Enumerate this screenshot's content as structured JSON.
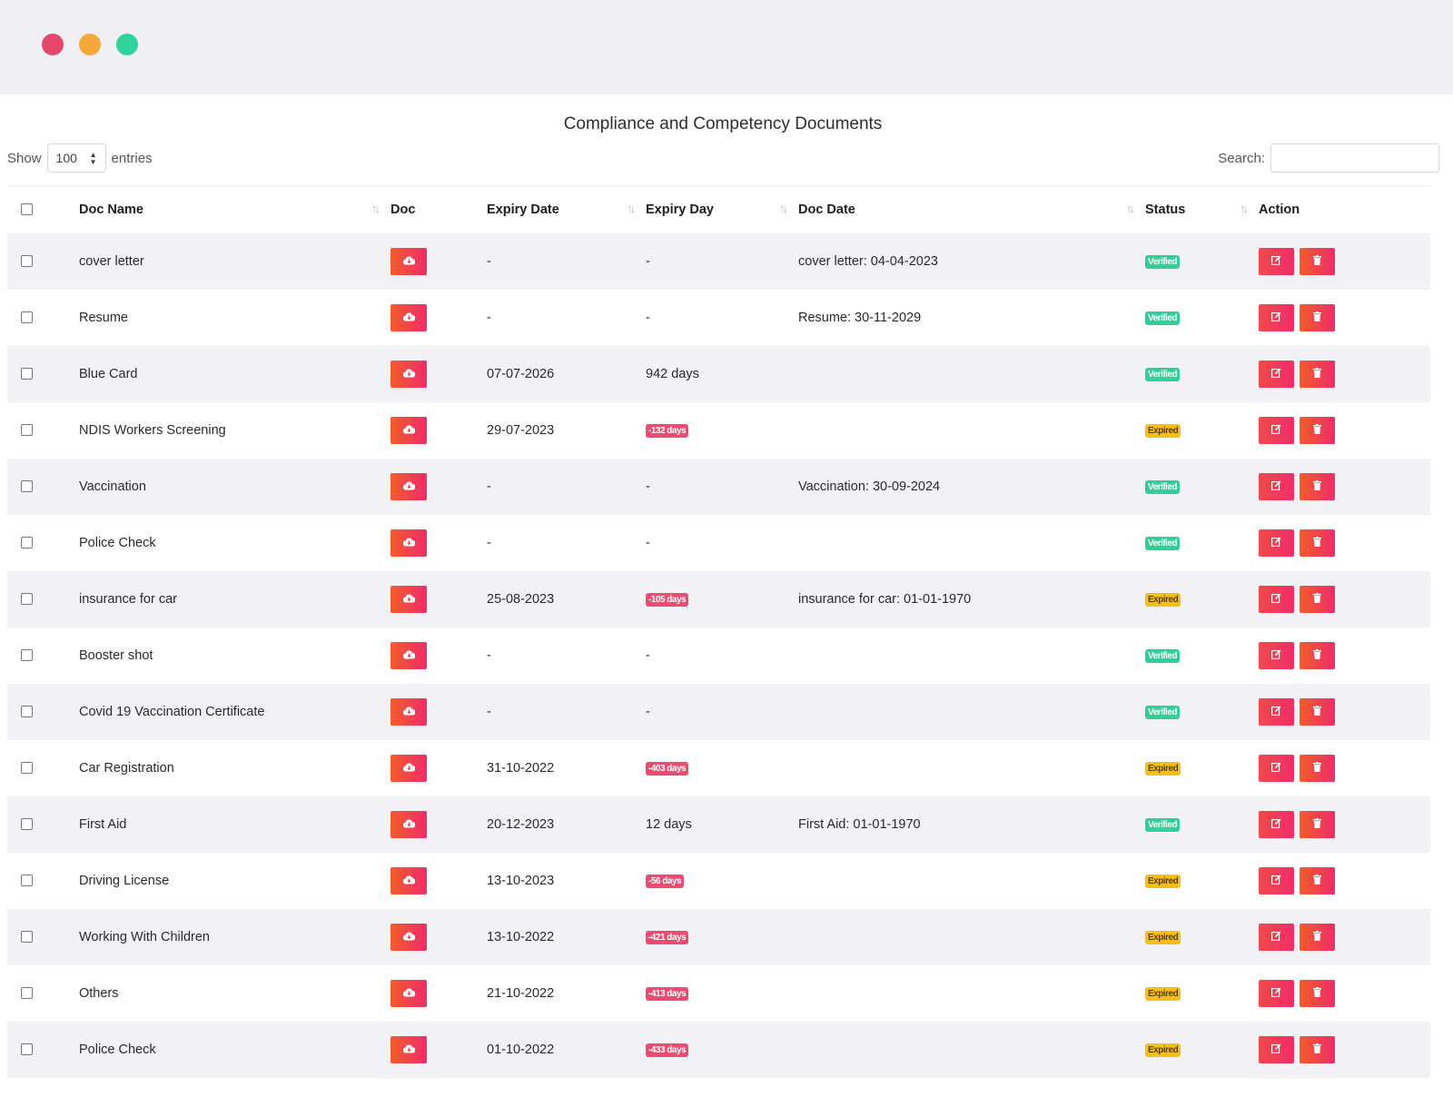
{
  "window": {
    "controls": [
      "close",
      "minimize",
      "maximize"
    ]
  },
  "page": {
    "title": "Compliance and Competency Documents"
  },
  "length_control": {
    "show_label": "Show",
    "value": "100",
    "entries_label": "entries"
  },
  "search": {
    "label": "Search:",
    "value": ""
  },
  "table": {
    "columns": [
      "Doc Name",
      "Doc",
      "Expiry Date",
      "Expiry Day",
      "Doc Date",
      "Status",
      "Action"
    ],
    "rows": [
      {
        "doc_name": "cover letter",
        "expiry_date": "-",
        "expiry_day": "-",
        "expiry_negative": false,
        "doc_date": "cover letter: 04-04-2023",
        "status": "Verified"
      },
      {
        "doc_name": "Resume",
        "expiry_date": "-",
        "expiry_day": "-",
        "expiry_negative": false,
        "doc_date": "Resume: 30-11-2029",
        "status": "Verified"
      },
      {
        "doc_name": "Blue Card",
        "expiry_date": "07-07-2026",
        "expiry_day": "942 days",
        "expiry_negative": false,
        "doc_date": "",
        "status": "Verified"
      },
      {
        "doc_name": "NDIS Workers Screening",
        "expiry_date": "29-07-2023",
        "expiry_day": "-132 days",
        "expiry_negative": true,
        "doc_date": "",
        "status": "Expired"
      },
      {
        "doc_name": "Vaccination",
        "expiry_date": "-",
        "expiry_day": "-",
        "expiry_negative": false,
        "doc_date": "Vaccination: 30-09-2024",
        "status": "Verified"
      },
      {
        "doc_name": "Police Check",
        "expiry_date": "-",
        "expiry_day": "-",
        "expiry_negative": false,
        "doc_date": "",
        "status": "Verified"
      },
      {
        "doc_name": "insurance for car",
        "expiry_date": "25-08-2023",
        "expiry_day": "-105 days",
        "expiry_negative": true,
        "doc_date": "insurance for car: 01-01-1970",
        "status": "Expired"
      },
      {
        "doc_name": "Booster shot",
        "expiry_date": "-",
        "expiry_day": "-",
        "expiry_negative": false,
        "doc_date": "",
        "status": "Verified"
      },
      {
        "doc_name": "Covid 19 Vaccination Certificate",
        "expiry_date": "-",
        "expiry_day": "-",
        "expiry_negative": false,
        "doc_date": "",
        "status": "Verified"
      },
      {
        "doc_name": "Car Registration",
        "expiry_date": "31-10-2022",
        "expiry_day": "-403 days",
        "expiry_negative": true,
        "doc_date": "",
        "status": "Expired"
      },
      {
        "doc_name": "First Aid",
        "expiry_date": "20-12-2023",
        "expiry_day": "12 days",
        "expiry_negative": false,
        "doc_date": "First Aid: 01-01-1970",
        "status": "Verified"
      },
      {
        "doc_name": "Driving License",
        "expiry_date": "13-10-2023",
        "expiry_day": "-56 days",
        "expiry_negative": true,
        "doc_date": "",
        "status": "Expired"
      },
      {
        "doc_name": "Working With Children",
        "expiry_date": "13-10-2022",
        "expiry_day": "-421 days",
        "expiry_negative": true,
        "doc_date": "",
        "status": "Expired"
      },
      {
        "doc_name": "Others",
        "expiry_date": "21-10-2022",
        "expiry_day": "-413 days",
        "expiry_negative": true,
        "doc_date": "",
        "status": "Expired"
      },
      {
        "doc_name": "Police Check",
        "expiry_date": "01-10-2022",
        "expiry_day": "-433 days",
        "expiry_negative": true,
        "doc_date": "",
        "status": "Expired"
      }
    ]
  },
  "colors": {
    "verified": "#2fcf97",
    "expired": "#f7be16",
    "negative_days": "#ef4a72",
    "accent": "#ef2d6a"
  },
  "icons": {
    "doc": "cloud-download-icon",
    "edit": "edit-icon",
    "delete": "trash-icon"
  }
}
